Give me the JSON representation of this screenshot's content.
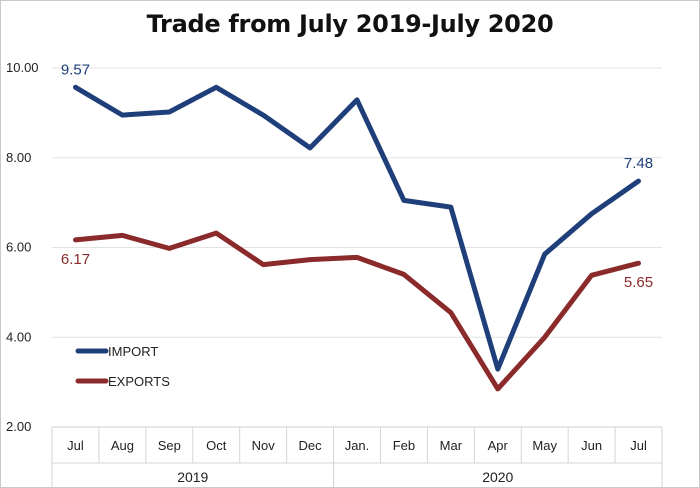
{
  "chart_data": {
    "type": "line",
    "title": "Trade from July 2019-July 2020",
    "categories": [
      "Jul",
      "Aug",
      "Sep",
      "Oct",
      "Nov",
      "Dec",
      "Jan.",
      "Feb",
      "Mar",
      "Apr",
      "May",
      "Jun",
      "Jul"
    ],
    "year_groups": [
      {
        "label": "2019",
        "span": [
          0,
          5
        ]
      },
      {
        "label": "2020",
        "span": [
          6,
          12
        ]
      }
    ],
    "ylim": [
      2,
      10
    ],
    "yticks": [
      "2.00",
      "4.00",
      "6.00",
      "8.00",
      "10.00"
    ],
    "grid": true,
    "legend_position": "lower-left",
    "series": [
      {
        "name": "IMPORT",
        "color": "#1f3f7a",
        "values": [
          9.57,
          8.95,
          9.02,
          9.57,
          8.95,
          8.22,
          9.29,
          7.05,
          6.9,
          3.29,
          5.85,
          6.75,
          7.48
        ],
        "labels": [
          {
            "index": 0,
            "text": "9.57",
            "pos": "above"
          },
          {
            "index": 12,
            "text": "7.48",
            "pos": "above"
          }
        ]
      },
      {
        "name": "EXPORTS",
        "color": "#8b2a2a",
        "values": [
          6.17,
          6.27,
          5.98,
          6.32,
          5.62,
          5.73,
          5.78,
          5.4,
          4.55,
          2.85,
          4.0,
          5.38,
          5.65
        ],
        "labels": [
          {
            "index": 0,
            "text": "6.17",
            "pos": "below"
          },
          {
            "index": 12,
            "text": "5.65",
            "pos": "below"
          }
        ]
      }
    ]
  }
}
